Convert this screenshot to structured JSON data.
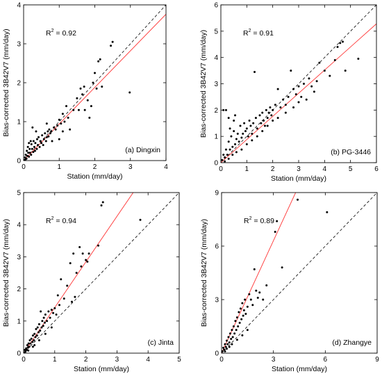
{
  "colors": {
    "points": "#000000",
    "fit_line": "#ff3333",
    "one_to_one": "#000000",
    "axes": "#000000"
  },
  "chart_data": [
    {
      "type": "scatter",
      "panel_label": "(a) Dingxin",
      "r2_label": "R",
      "r2_value": " = 0.92",
      "xlabel": "Station (mm/day)",
      "ylabel": "Bias-corrected 3B42V7 (mm/day)",
      "xlim": [
        0,
        4
      ],
      "ylim": [
        0,
        4
      ],
      "xticks": [
        0,
        1,
        2,
        3,
        4
      ],
      "yticks": [
        0,
        1,
        2,
        3,
        4
      ],
      "fit_line": {
        "slope": 0.94,
        "intercept": 0.0
      },
      "one_to_one": true,
      "points": [
        [
          0.02,
          0.01
        ],
        [
          0.04,
          0.08
        ],
        [
          0.05,
          0.03
        ],
        [
          0.06,
          0.15
        ],
        [
          0.08,
          0.05
        ],
        [
          0.09,
          0.25
        ],
        [
          0.1,
          0.12
        ],
        [
          0.12,
          0.35
        ],
        [
          0.13,
          0.2
        ],
        [
          0.15,
          0.1
        ],
        [
          0.15,
          0.45
        ],
        [
          0.17,
          0.3
        ],
        [
          0.18,
          0.2
        ],
        [
          0.2,
          0.5
        ],
        [
          0.21,
          0.15
        ],
        [
          0.22,
          0.42
        ],
        [
          0.24,
          0.3
        ],
        [
          0.25,
          0.85
        ],
        [
          0.27,
          0.22
        ],
        [
          0.28,
          0.5
        ],
        [
          0.3,
          0.35
        ],
        [
          0.32,
          0.25
        ],
        [
          0.33,
          0.45
        ],
        [
          0.35,
          0.75
        ],
        [
          0.37,
          0.3
        ],
        [
          0.38,
          0.55
        ],
        [
          0.4,
          0.4
        ],
        [
          0.42,
          0.6
        ],
        [
          0.45,
          0.35
        ],
        [
          0.47,
          0.5
        ],
        [
          0.5,
          0.45
        ],
        [
          0.52,
          0.65
        ],
        [
          0.55,
          0.4
        ],
        [
          0.57,
          0.55
        ],
        [
          0.6,
          0.7
        ],
        [
          0.63,
          0.5
        ],
        [
          0.65,
          0.6
        ],
        [
          0.68,
          0.75
        ],
        [
          0.7,
          0.62
        ],
        [
          0.72,
          0.8
        ],
        [
          0.75,
          0.7
        ],
        [
          0.78,
          0.75
        ],
        [
          0.8,
          0.5
        ],
        [
          0.85,
          0.85
        ],
        [
          0.9,
          0.8
        ],
        [
          0.95,
          0.9
        ],
        [
          1.0,
          1.05
        ],
        [
          1.05,
          0.95
        ],
        [
          1.1,
          1.2
        ],
        [
          1.15,
          1.0
        ],
        [
          1.2,
          1.4
        ],
        [
          1.25,
          1.1
        ],
        [
          1.3,
          0.8
        ],
        [
          1.4,
          1.3
        ],
        [
          1.5,
          1.6
        ],
        [
          1.55,
          1.3
        ],
        [
          1.6,
          1.85
        ],
        [
          1.65,
          1.7
        ],
        [
          1.7,
          1.9
        ],
        [
          1.72,
          1.3
        ],
        [
          1.8,
          1.55
        ],
        [
          1.85,
          1.1
        ],
        [
          1.9,
          1.4
        ],
        [
          1.95,
          2.0
        ],
        [
          2.0,
          2.25
        ],
        [
          2.05,
          1.85
        ],
        [
          2.1,
          2.55
        ],
        [
          2.15,
          2.6
        ],
        [
          2.2,
          1.9
        ],
        [
          2.45,
          2.95
        ],
        [
          2.5,
          3.05
        ],
        [
          2.98,
          1.75
        ],
        [
          1.0,
          0.55
        ],
        [
          0.65,
          0.95
        ],
        [
          1.1,
          0.75
        ]
      ]
    },
    {
      "type": "scatter",
      "panel_label": "(b) PG-3446",
      "r2_label": "R",
      "r2_value": " = 0.91",
      "xlabel": "Station (mm/day)",
      "ylabel": "Bias-corrected 3B42V7 (mm/day)",
      "xlim": [
        0,
        6
      ],
      "ylim": [
        0,
        6
      ],
      "xticks": [
        0,
        1,
        2,
        3,
        4,
        5,
        6
      ],
      "yticks": [
        0,
        1,
        2,
        3,
        4,
        5,
        6
      ],
      "fit_line": {
        "slope": 0.88,
        "intercept": 0.0
      },
      "one_to_one": true,
      "points": [
        [
          0.05,
          0.1
        ],
        [
          0.1,
          0.3
        ],
        [
          0.15,
          0.2
        ],
        [
          0.2,
          0.5
        ],
        [
          0.25,
          0.3
        ],
        [
          0.3,
          0.8
        ],
        [
          0.35,
          0.5
        ],
        [
          0.4,
          1.0
        ],
        [
          0.45,
          0.6
        ],
        [
          0.5,
          1.2
        ],
        [
          0.55,
          0.7
        ],
        [
          0.6,
          0.9
        ],
        [
          0.65,
          1.1
        ],
        [
          0.7,
          0.8
        ],
        [
          0.75,
          1.4
        ],
        [
          0.8,
          0.95
        ],
        [
          0.85,
          1.1
        ],
        [
          0.9,
          1.5
        ],
        [
          0.95,
          1.2
        ],
        [
          1.0,
          1.3
        ],
        [
          1.05,
          1.0
        ],
        [
          1.1,
          1.6
        ],
        [
          1.15,
          1.4
        ],
        [
          1.2,
          1.1
        ],
        [
          1.25,
          1.5
        ],
        [
          1.3,
          3.45
        ],
        [
          1.35,
          1.7
        ],
        [
          1.4,
          1.3
        ],
        [
          1.5,
          1.8
        ],
        [
          1.55,
          1.5
        ],
        [
          1.6,
          1.9
        ],
        [
          1.65,
          1.6
        ],
        [
          1.7,
          1.4
        ],
        [
          1.75,
          2.0
        ],
        [
          1.8,
          1.7
        ],
        [
          1.85,
          1.9
        ],
        [
          1.9,
          2.1
        ],
        [
          1.95,
          1.8
        ],
        [
          2.0,
          2.0
        ],
        [
          2.1,
          2.2
        ],
        [
          2.2,
          2.8
        ],
        [
          2.3,
          2.1
        ],
        [
          2.4,
          2.4
        ],
        [
          2.5,
          2.2
        ],
        [
          2.6,
          2.5
        ],
        [
          2.7,
          3.5
        ],
        [
          2.8,
          2.8
        ],
        [
          2.9,
          2.6
        ],
        [
          3.0,
          2.9
        ],
        [
          3.1,
          2.5
        ],
        [
          3.2,
          3.0
        ],
        [
          3.3,
          2.4
        ],
        [
          3.4,
          3.2
        ],
        [
          3.5,
          2.9
        ],
        [
          3.6,
          2.7
        ],
        [
          3.7,
          3.1
        ],
        [
          3.8,
          3.8
        ],
        [
          4.0,
          3.5
        ],
        [
          4.2,
          3.3
        ],
        [
          4.4,
          3.9
        ],
        [
          4.5,
          4.4
        ],
        [
          4.6,
          4.55
        ],
        [
          4.7,
          4.6
        ],
        [
          4.8,
          3.5
        ],
        [
          5.3,
          3.95
        ],
        [
          0.2,
          2.0
        ],
        [
          0.1,
          2.0
        ],
        [
          0.3,
          1.7
        ],
        [
          0.5,
          1.6
        ],
        [
          0.15,
          0.05
        ],
        [
          0.3,
          0.15
        ],
        [
          0.45,
          0.3
        ],
        [
          0.6,
          0.4
        ],
        [
          0.8,
          0.5
        ],
        [
          1.0,
          0.7
        ],
        [
          1.2,
          0.85
        ],
        [
          1.4,
          1.0
        ],
        [
          1.6,
          1.2
        ],
        [
          1.8,
          1.4
        ],
        [
          2.0,
          1.6
        ],
        [
          2.2,
          1.7
        ],
        [
          2.5,
          1.9
        ],
        [
          2.8,
          2.1
        ],
        [
          3.0,
          2.3
        ],
        [
          0.35,
          1.3
        ],
        [
          0.55,
          1.8
        ]
      ]
    },
    {
      "type": "scatter",
      "panel_label": "(c) Jinta",
      "r2_label": "R",
      "r2_value": " = 0.94",
      "xlabel": "Station (mm/day)",
      "ylabel": "Bias-corrected 3B42V7 (mm/day)",
      "xlim": [
        0,
        5
      ],
      "ylim": [
        0,
        5
      ],
      "xticks": [
        0,
        1,
        2,
        3,
        4,
        5
      ],
      "yticks": [
        0,
        1,
        2,
        3,
        4,
        5
      ],
      "fit_line": {
        "slope": 1.42,
        "intercept": 0.0
      },
      "one_to_one": true,
      "points": [
        [
          0.02,
          0.02
        ],
        [
          0.04,
          0.1
        ],
        [
          0.06,
          0.05
        ],
        [
          0.08,
          0.15
        ],
        [
          0.1,
          0.1
        ],
        [
          0.12,
          0.25
        ],
        [
          0.14,
          0.18
        ],
        [
          0.16,
          0.3
        ],
        [
          0.18,
          0.2
        ],
        [
          0.2,
          0.4
        ],
        [
          0.22,
          0.3
        ],
        [
          0.25,
          0.45
        ],
        [
          0.28,
          0.35
        ],
        [
          0.3,
          0.55
        ],
        [
          0.33,
          0.4
        ],
        [
          0.35,
          0.6
        ],
        [
          0.38,
          0.5
        ],
        [
          0.4,
          0.75
        ],
        [
          0.43,
          0.55
        ],
        [
          0.45,
          0.8
        ],
        [
          0.48,
          0.65
        ],
        [
          0.5,
          0.9
        ],
        [
          0.53,
          0.7
        ],
        [
          0.55,
          1.3
        ],
        [
          0.58,
          0.8
        ],
        [
          0.6,
          1.0
        ],
        [
          0.63,
          0.85
        ],
        [
          0.65,
          1.1
        ],
        [
          0.68,
          0.95
        ],
        [
          0.7,
          1.2
        ],
        [
          0.75,
          1.0
        ],
        [
          0.8,
          1.3
        ],
        [
          0.85,
          1.1
        ],
        [
          0.9,
          1.35
        ],
        [
          0.95,
          1.25
        ],
        [
          1.0,
          1.4
        ],
        [
          1.05,
          1.2
        ],
        [
          1.1,
          1.8
        ],
        [
          1.15,
          1.5
        ],
        [
          1.2,
          2.3
        ],
        [
          1.3,
          1.7
        ],
        [
          1.4,
          2.1
        ],
        [
          1.5,
          2.8
        ],
        [
          1.55,
          1.6
        ],
        [
          1.6,
          3.1
        ],
        [
          1.65,
          1.75
        ],
        [
          1.7,
          2.5
        ],
        [
          1.8,
          3.3
        ],
        [
          1.85,
          2.7
        ],
        [
          1.9,
          3.1
        ],
        [
          2.0,
          2.9
        ],
        [
          2.05,
          2.85
        ],
        [
          2.1,
          3.1
        ],
        [
          2.4,
          3.35
        ],
        [
          2.5,
          4.6
        ],
        [
          2.55,
          4.7
        ],
        [
          3.75,
          4.15
        ],
        [
          0.3,
          0.2
        ],
        [
          0.5,
          0.4
        ],
        [
          0.7,
          0.6
        ],
        [
          0.9,
          0.8
        ],
        [
          0.15,
          0.08
        ],
        [
          0.35,
          0.25
        ]
      ]
    },
    {
      "type": "scatter",
      "panel_label": "(d) Zhangye",
      "r2_label": "R",
      "r2_value": " = 0.89",
      "xlabel": "Station (mm/day)",
      "ylabel": "Bias-corrected 3B42V7 (mm/day)",
      "xlim": [
        0,
        9
      ],
      "ylim": [
        0,
        9
      ],
      "xticks": [
        0,
        3,
        6,
        9
      ],
      "yticks": [
        0,
        3,
        6,
        9
      ],
      "fit_line": {
        "slope": 2.1,
        "intercept": 0.0
      },
      "one_to_one": true,
      "points": [
        [
          0.05,
          0.1
        ],
        [
          0.1,
          0.3
        ],
        [
          0.15,
          0.2
        ],
        [
          0.2,
          0.5
        ],
        [
          0.25,
          0.35
        ],
        [
          0.3,
          0.7
        ],
        [
          0.35,
          0.5
        ],
        [
          0.4,
          0.9
        ],
        [
          0.45,
          0.6
        ],
        [
          0.5,
          1.1
        ],
        [
          0.55,
          0.8
        ],
        [
          0.6,
          1.3
        ],
        [
          0.65,
          0.9
        ],
        [
          0.7,
          1.5
        ],
        [
          0.75,
          1.1
        ],
        [
          0.8,
          1.8
        ],
        [
          0.85,
          1.3
        ],
        [
          0.9,
          2.0
        ],
        [
          0.95,
          1.5
        ],
        [
          1.0,
          2.3
        ],
        [
          1.05,
          1.7
        ],
        [
          1.1,
          2.5
        ],
        [
          1.15,
          1.9
        ],
        [
          1.2,
          2.8
        ],
        [
          1.25,
          2.1
        ],
        [
          1.3,
          2.4
        ],
        [
          1.35,
          3.0
        ],
        [
          1.4,
          2.2
        ],
        [
          1.5,
          2.6
        ],
        [
          1.6,
          3.3
        ],
        [
          1.7,
          3.0
        ],
        [
          1.8,
          2.7
        ],
        [
          1.9,
          4.7
        ],
        [
          2.0,
          3.5
        ],
        [
          2.1,
          3.1
        ],
        [
          2.2,
          3.4
        ],
        [
          2.4,
          3.0
        ],
        [
          2.6,
          3.8
        ],
        [
          3.1,
          6.8
        ],
        [
          3.2,
          7.4
        ],
        [
          3.5,
          4.8
        ],
        [
          4.4,
          8.6
        ],
        [
          6.1,
          7.9
        ],
        [
          0.3,
          0.25
        ],
        [
          0.6,
          0.5
        ],
        [
          0.9,
          0.75
        ],
        [
          1.2,
          1.0
        ],
        [
          1.5,
          1.3
        ],
        [
          0.2,
          0.1
        ],
        [
          0.45,
          0.35
        ]
      ]
    }
  ]
}
